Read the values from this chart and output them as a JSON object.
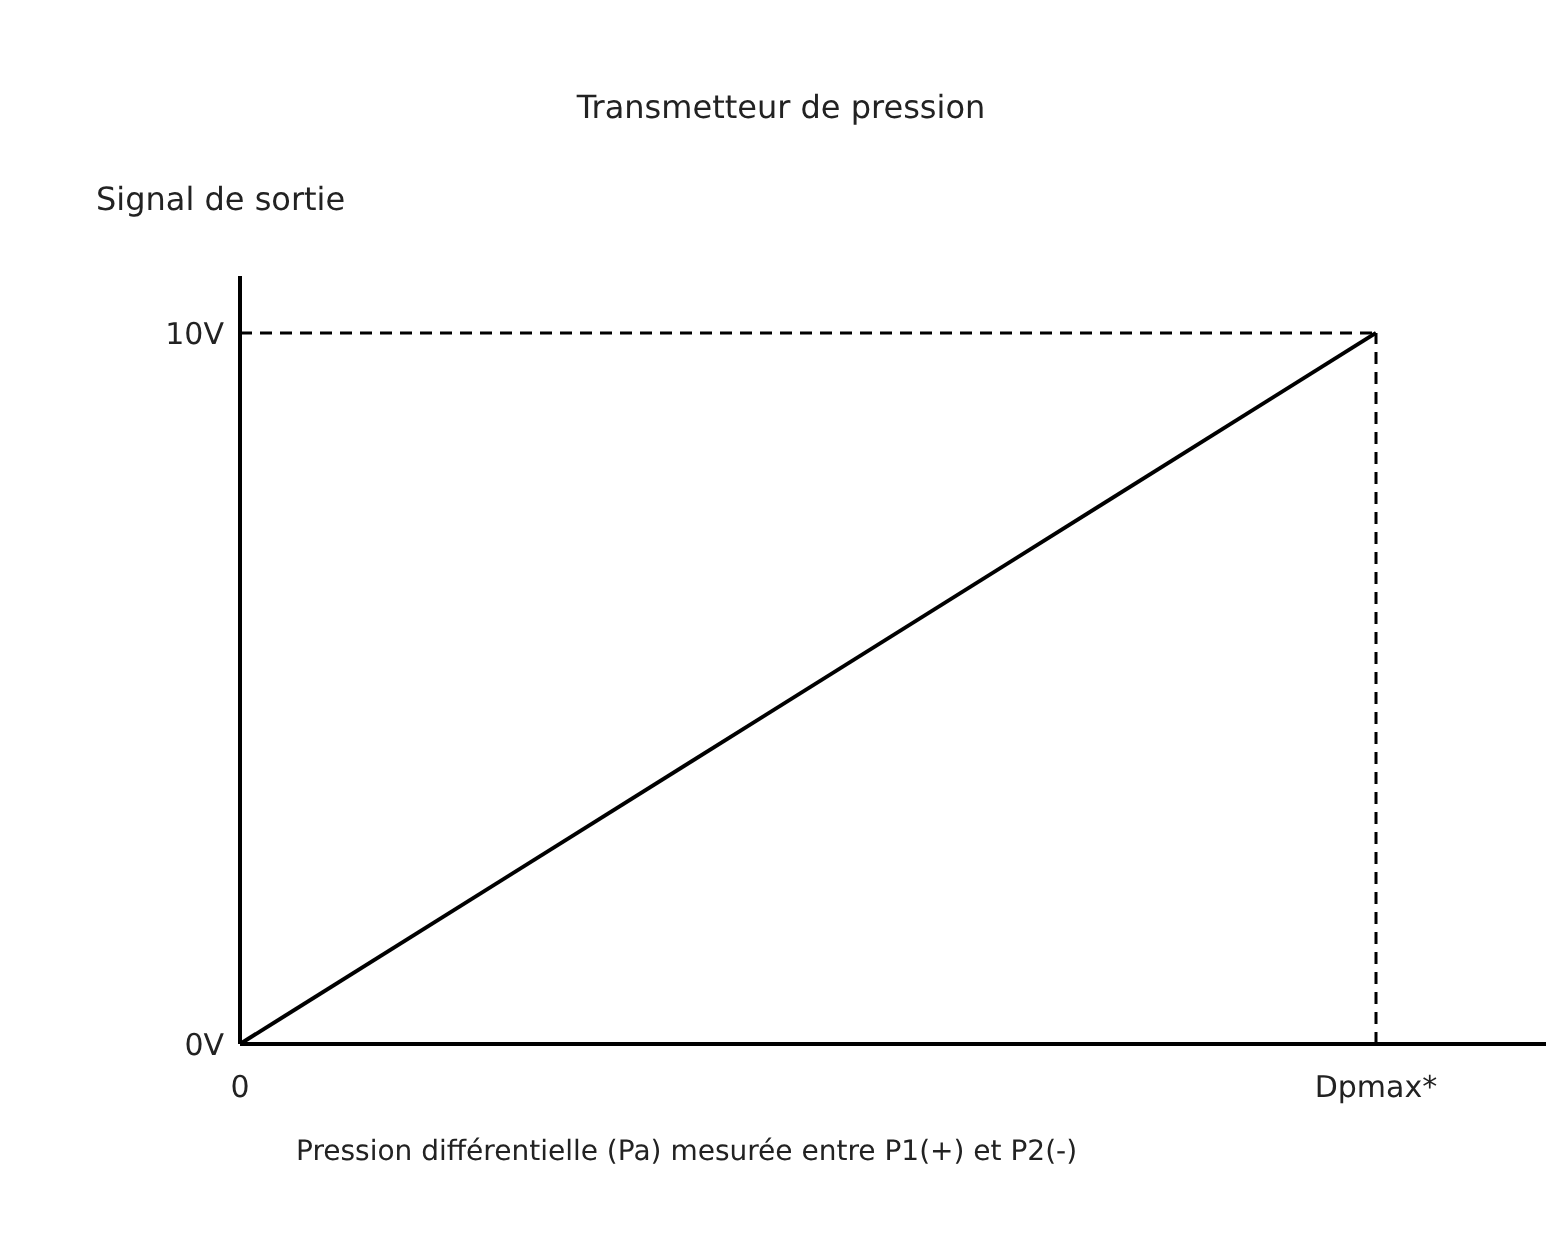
{
  "chart_data": {
    "type": "line",
    "title": "Transmetteur de pression",
    "ylabel": "Signal de sortie",
    "xlabel": "Pression différentielle (Pa) mesurée entre P1(+) et P2(-)",
    "categories": [
      "0",
      "Dpmax*"
    ],
    "series": [
      {
        "color": "#000000",
        "values": [
          0,
          10
        ]
      }
    ],
    "ylim": [
      0,
      10.8
    ],
    "yticks": [
      {
        "value": 0,
        "label": "0V"
      },
      {
        "value": 10,
        "label": "10V"
      }
    ],
    "ref_lines": [
      {
        "axis": "y",
        "value": 10,
        "line_style": "dashed",
        "color": "#000000"
      },
      {
        "axis": "x",
        "value": "Dpmax*",
        "line_style": "dashed",
        "color": "#000000"
      }
    ],
    "grid": false,
    "legend": false,
    "marker": "none",
    "line_style": "solid"
  }
}
